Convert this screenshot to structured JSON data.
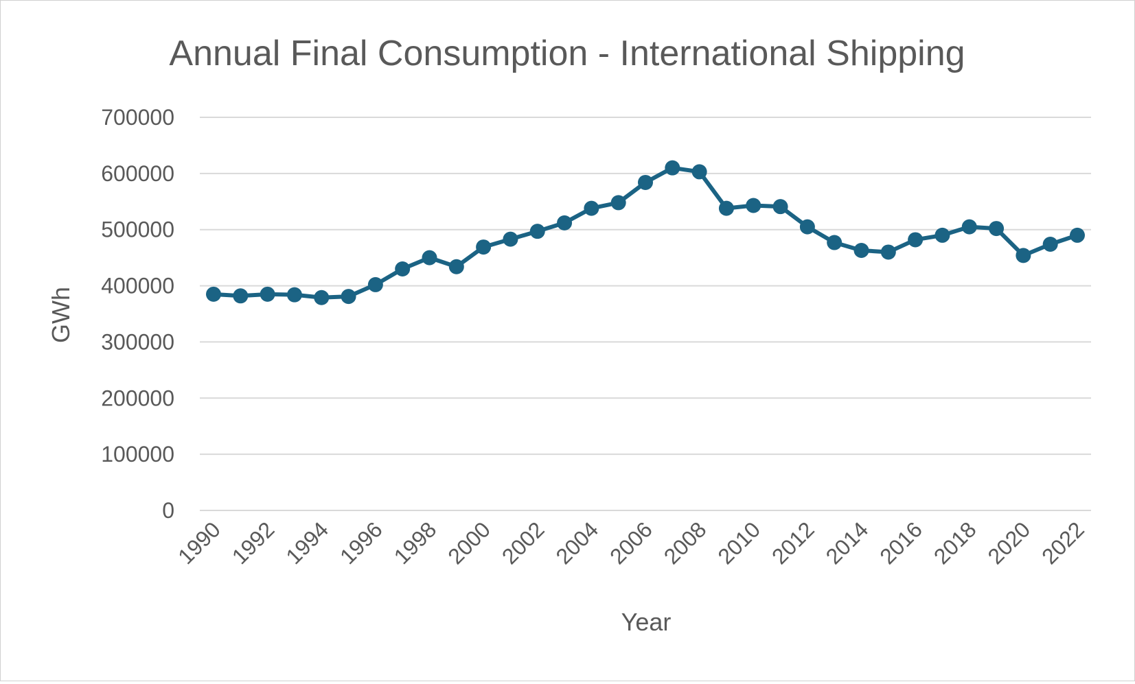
{
  "chart_data": {
    "type": "line",
    "title": "Annual Final Consumption - International Shipping",
    "xlabel": "Year",
    "ylabel": "GWh",
    "ylim": [
      0,
      700000
    ],
    "yticks": [
      "0",
      "100000",
      "200000",
      "300000",
      "400000",
      "500000",
      "600000",
      "700000"
    ],
    "xticks": [
      "1990",
      "1992",
      "1994",
      "1996",
      "1998",
      "2000",
      "2002",
      "2004",
      "2006",
      "2008",
      "2010",
      "2012",
      "2014",
      "2016",
      "2018",
      "2020",
      "2022"
    ],
    "grid": true,
    "legend": "none",
    "series_color": "#1b6384",
    "x": [
      1990,
      1991,
      1992,
      1993,
      1994,
      1995,
      1996,
      1997,
      1998,
      1999,
      2000,
      2001,
      2002,
      2003,
      2004,
      2005,
      2006,
      2007,
      2008,
      2009,
      2010,
      2011,
      2012,
      2013,
      2014,
      2015,
      2016,
      2017,
      2018,
      2019,
      2020,
      2021,
      2022
    ],
    "series": [
      {
        "values": [
          385000,
          382000,
          385000,
          384000,
          379000,
          381000,
          402000,
          430000,
          450000,
          434000,
          469000,
          483000,
          497000,
          512000,
          538000,
          548000,
          584000,
          610000,
          603000,
          538000,
          543000,
          541000,
          505000,
          477000,
          463000,
          460000,
          482000,
          490000,
          505000,
          502000,
          454000,
          474000,
          490000
        ]
      }
    ]
  }
}
